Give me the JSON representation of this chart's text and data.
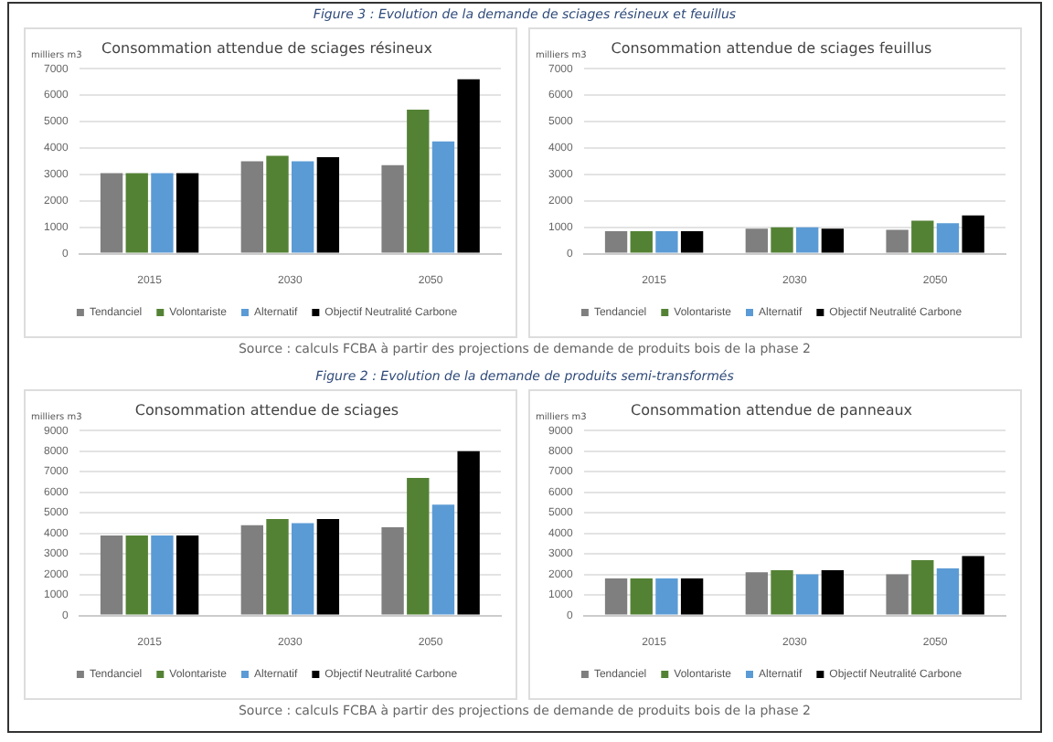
{
  "chart_data": [
    {
      "type": "bar",
      "title": "Consommation attendue de sciages résineux",
      "ylabel": "milliers m3",
      "annotations": [
        "Figure 3 : Evolution de la demande de sciages résineux et feuillus"
      ],
      "categories": [
        "2015",
        "2030",
        "2050"
      ],
      "series": [
        {
          "name": "Tendanciel",
          "color": "#7f7f7f",
          "values": [
            3050,
            3500,
            3350
          ]
        },
        {
          "name": "Volontariste",
          "color": "#548235",
          "values": [
            3050,
            3700,
            5450
          ]
        },
        {
          "name": "Alternatif",
          "color": "#5b9bd5",
          "values": [
            3050,
            3500,
            4250
          ]
        },
        {
          "name": "Objectif Neutralité Carbone",
          "color": "#000000",
          "values": [
            3050,
            3650,
            6600
          ]
        }
      ],
      "ylim": [
        0,
        7000
      ],
      "yticks": [
        0,
        1000,
        2000,
        3000,
        4000,
        5000,
        6000,
        7000
      ],
      "grid": "y",
      "legend": "bottom"
    },
    {
      "type": "bar",
      "title": "Consommation attendue de sciages feuillus",
      "ylabel": "milliers m3",
      "annotations": [
        "Source : calculs FCBA à partir des projections de demande de produits bois de la phase 2"
      ],
      "categories": [
        "2015",
        "2030",
        "2050"
      ],
      "series": [
        {
          "name": "Tendanciel",
          "color": "#7f7f7f",
          "values": [
            850,
            950,
            900
          ]
        },
        {
          "name": "Volontariste",
          "color": "#548235",
          "values": [
            850,
            1000,
            1250
          ]
        },
        {
          "name": "Alternatif",
          "color": "#5b9bd5",
          "values": [
            850,
            1000,
            1150
          ]
        },
        {
          "name": "Objectif Neutralité Carbone",
          "color": "#000000",
          "values": [
            850,
            950,
            1450
          ]
        }
      ],
      "ylim": [
        0,
        7000
      ],
      "yticks": [
        0,
        1000,
        2000,
        3000,
        4000,
        5000,
        6000,
        7000
      ],
      "grid": "y",
      "legend": "bottom"
    },
    {
      "type": "bar",
      "title": "Consommation attendue de sciages",
      "ylabel": "milliers m3",
      "annotations": [
        "Figure 2 : Evolution de la demande de produits semi-transformés"
      ],
      "categories": [
        "2015",
        "2030",
        "2050"
      ],
      "series": [
        {
          "name": "Tendanciel",
          "color": "#7f7f7f",
          "values": [
            3900,
            4400,
            4300
          ]
        },
        {
          "name": "Volontariste",
          "color": "#548235",
          "values": [
            3900,
            4700,
            6700
          ]
        },
        {
          "name": "Alternatif",
          "color": "#5b9bd5",
          "values": [
            3900,
            4500,
            5400
          ]
        },
        {
          "name": "Objectif Neutralité Carbone",
          "color": "#000000",
          "values": [
            3900,
            4700,
            8000
          ]
        }
      ],
      "ylim": [
        0,
        9000
      ],
      "yticks": [
        0,
        1000,
        2000,
        3000,
        4000,
        5000,
        6000,
        7000,
        8000,
        9000
      ],
      "grid": "y",
      "legend": "bottom"
    },
    {
      "type": "bar",
      "title": "Consommation attendue de panneaux",
      "ylabel": "milliers m3",
      "annotations": [
        "Source : calculs FCBA à partir des projections de demande de produits bois de la phase 2"
      ],
      "categories": [
        "2015",
        "2030",
        "2050"
      ],
      "series": [
        {
          "name": "Tendanciel",
          "color": "#7f7f7f",
          "values": [
            1800,
            2100,
            2000
          ]
        },
        {
          "name": "Volontariste",
          "color": "#548235",
          "values": [
            1800,
            2200,
            2700
          ]
        },
        {
          "name": "Alternatif",
          "color": "#5b9bd5",
          "values": [
            1800,
            2000,
            2300
          ]
        },
        {
          "name": "Objectif Neutralité Carbone",
          "color": "#000000",
          "values": [
            1800,
            2200,
            2900
          ]
        }
      ],
      "ylim": [
        0,
        9000
      ],
      "yticks": [
        0,
        1000,
        2000,
        3000,
        4000,
        5000,
        6000,
        7000,
        8000,
        9000
      ],
      "grid": "y",
      "legend": "bottom"
    }
  ]
}
